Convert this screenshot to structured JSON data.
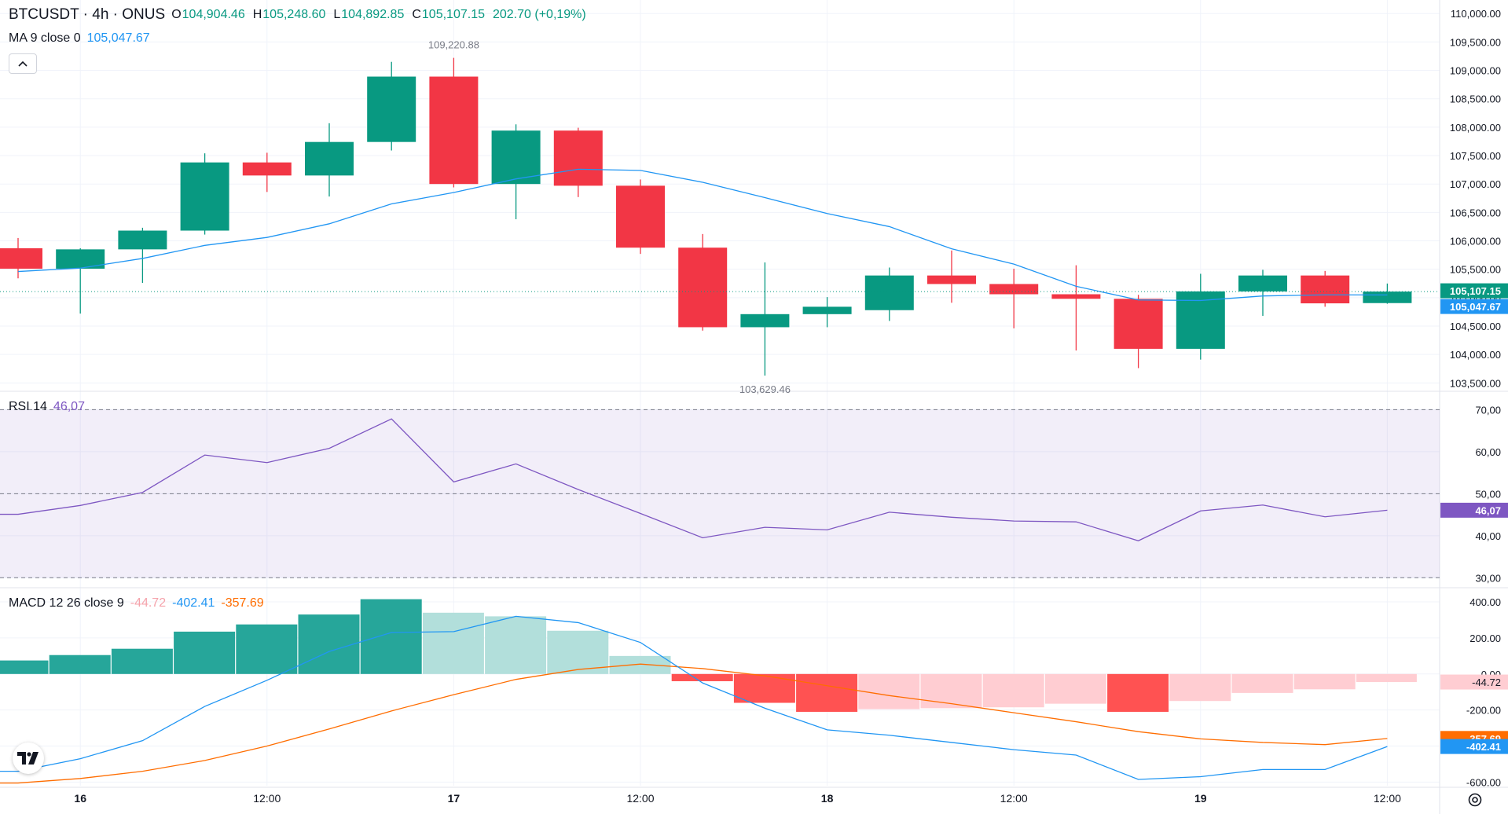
{
  "header": {
    "symbol": "BTCUSDT · 4h · ONUS",
    "open_label": "O",
    "open": "104,904.46",
    "high_label": "H",
    "high": "105,248.60",
    "low_label": "L",
    "low": "104,892.85",
    "close_label": "C",
    "close": "105,107.15",
    "change": "202.70 (+0,19%)"
  },
  "ma_legend": {
    "title": "MA 9 close 0",
    "value": "105,047.67"
  },
  "rsi_legend": {
    "title": "RSI 14",
    "value": "46,07"
  },
  "macd_legend": {
    "title": "MACD 12 26 close 9",
    "hist": "-44.72",
    "macd": "-402.41",
    "signal": "-357.69"
  },
  "icons": {
    "collapse": "chevron-up-icon",
    "logo": "tradingview-logo",
    "settings": "settings-gear-icon"
  },
  "colors": {
    "up": "#089981",
    "down": "#f23645",
    "ma": "#2196f3",
    "rsi": "#7e57c2",
    "macd": "#2196f3",
    "signal": "#ff6d00",
    "hist_up_strong": "#26a69a",
    "hist_up_weak": "#b2dfdb",
    "hist_down_strong": "#ff5252",
    "hist_down_weak": "#ffcdd2"
  },
  "chart_data": [
    {
      "type": "candlestick",
      "title": "BTCUSDT · 4h · ONUS",
      "x": [
        "15 20:00",
        "16 00:00",
        "16 04:00",
        "16 08:00",
        "16 12:00",
        "16 16:00",
        "16 20:00",
        "17 00:00",
        "17 04:00",
        "17 08:00",
        "17 12:00",
        "17 16:00",
        "17 20:00",
        "18 00:00",
        "18 04:00",
        "18 08:00",
        "18 12:00",
        "18 16:00",
        "18 20:00",
        "19 00:00",
        "19 04:00",
        "19 08:00",
        "19 12:00"
      ],
      "open": [
        105870,
        105510,
        105850,
        106180,
        107380,
        107150,
        107740,
        108890,
        107000,
        107940,
        106970,
        105880,
        104480,
        104710,
        104780,
        105390,
        105240,
        105060,
        104980,
        104100,
        105110,
        105390,
        104904.46
      ],
      "high": [
        106050,
        105870,
        106230,
        107540,
        107550,
        108070,
        109150,
        109220.88,
        108050,
        107990,
        107080,
        106120,
        105620,
        105010,
        105530,
        105830,
        105510,
        105570,
        105050,
        105420,
        105490,
        105470,
        105248.6
      ],
      "low": [
        105340,
        104720,
        105260,
        106110,
        106860,
        106780,
        107590,
        106940,
        106380,
        106770,
        105770,
        104420,
        103629.46,
        104480,
        104590,
        104910,
        104460,
        104070,
        103760,
        103910,
        104680,
        104840,
        104892.85
      ],
      "close": [
        105510,
        105850,
        106180,
        107380,
        107150,
        107740,
        108890,
        107000,
        107940,
        106970,
        105880,
        104480,
        104710,
        104840,
        105390,
        105240,
        105060,
        104980,
        104100,
        105110,
        105390,
        104900,
        105107.15
      ],
      "ma9": [
        105460,
        105520,
        105690,
        105920,
        106060,
        106300,
        106650,
        106850,
        107090,
        107260,
        107240,
        107030,
        106760,
        106480,
        106250,
        105860,
        105590,
        105200,
        104960,
        104950,
        105030,
        105050,
        105047.67
      ],
      "y_ticks": [
        103500,
        104000,
        104500,
        105000,
        105500,
        106000,
        106500,
        107000,
        107500,
        108000,
        108500,
        109000,
        109500,
        110000
      ],
      "y_tick_labels": [
        "103,500.00",
        "104,000.00",
        "104,500.00",
        "105,000.00",
        "105,500.00",
        "106,000.00",
        "106,500.00",
        "107,000.00",
        "107,500.00",
        "108,000.00",
        "108,500.00",
        "109,000.00",
        "109,500.00",
        "110,000.00"
      ],
      "ylim": [
        103380,
        110100
      ],
      "high_label": "109,220.88",
      "low_label": "103,629.46",
      "last_price_label": "105,107.15",
      "ma_label": "105,047.67"
    },
    {
      "type": "line",
      "title": "RSI 14",
      "values": [
        45.1,
        47.2,
        50.3,
        59.2,
        57.4,
        60.8,
        67.8,
        52.8,
        57.1,
        51.0,
        45.3,
        39.5,
        42.0,
        41.4,
        45.6,
        44.4,
        43.5,
        43.3,
        38.8,
        45.9,
        47.3,
        44.5,
        46.07
      ],
      "levels": [
        70,
        50,
        30
      ],
      "y_ticks": [
        30,
        40,
        50,
        60,
        70
      ],
      "y_tick_labels": [
        "30,00",
        "40,00",
        "50,00",
        "60,00",
        "70,00"
      ],
      "ylim": [
        28,
        74
      ],
      "last_label": "46,07"
    },
    {
      "type": "bar+line",
      "title": "MACD 12 26 close 9",
      "histogram": [
        75,
        105,
        140,
        235,
        275,
        330,
        415,
        340,
        320,
        240,
        100,
        -40,
        -160,
        -210,
        -195,
        -190,
        -185,
        -165,
        -210,
        -150,
        -105,
        -85,
        -44.72
      ],
      "macd": [
        -540,
        -470,
        -370,
        -180,
        -35,
        125,
        230,
        235,
        320,
        285,
        175,
        -50,
        -190,
        -310,
        -340,
        -380,
        -420,
        -450,
        -585,
        -570,
        -530,
        -530,
        -402.41
      ],
      "signal": [
        -605,
        -580,
        -540,
        -480,
        -400,
        -305,
        -205,
        -115,
        -30,
        25,
        55,
        30,
        -10,
        -65,
        -120,
        -165,
        -215,
        -265,
        -320,
        -360,
        -380,
        -392,
        -357.69
      ],
      "y_ticks": [
        -600,
        -400,
        -200,
        0,
        200,
        400
      ],
      "y_tick_labels": [
        "-600.00",
        "-400.00",
        "-200.00",
        "0.00",
        "200.00",
        "400.00"
      ],
      "ylim": [
        -620,
        470
      ],
      "hist_label": "-44.72",
      "signal_label": "-357.69",
      "macd_label": "-402.41"
    }
  ],
  "time_axis": {
    "ticks": [
      {
        "index": 1,
        "label": "16",
        "bold": true
      },
      {
        "index": 4,
        "label": "12:00",
        "bold": false
      },
      {
        "index": 7,
        "label": "17",
        "bold": true
      },
      {
        "index": 10,
        "label": "12:00",
        "bold": false
      },
      {
        "index": 13,
        "label": "18",
        "bold": true
      },
      {
        "index": 16,
        "label": "12:00",
        "bold": false
      },
      {
        "index": 19,
        "label": "19",
        "bold": true
      },
      {
        "index": 22,
        "label": "12:00",
        "bold": false
      }
    ]
  }
}
